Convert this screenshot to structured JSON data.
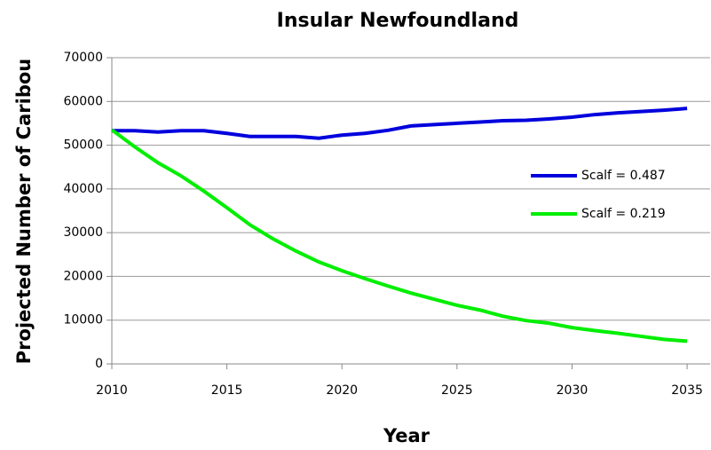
{
  "chart_data": {
    "type": "line",
    "title": "Insular Newfoundland",
    "x_label": "Year",
    "y_label": "Projected Number of Caribou",
    "x": [
      2010,
      2011,
      2012,
      2013,
      2014,
      2015,
      2016,
      2017,
      2018,
      2019,
      2020,
      2021,
      2022,
      2023,
      2024,
      2025,
      2026,
      2027,
      2028,
      2029,
      2030,
      2031,
      2032,
      2033,
      2034,
      2035
    ],
    "series": [
      {
        "name": "Scalf = 0.487",
        "color": "#0000dd",
        "values": [
          53300,
          53300,
          53000,
          53300,
          53300,
          52700,
          52000,
          52000,
          52000,
          51600,
          52300,
          52700,
          53400,
          54400,
          54700,
          55000,
          55300,
          55600,
          55700,
          56000,
          56400,
          57000,
          57400,
          57700,
          58000,
          58400
        ]
      },
      {
        "name": "Scalf = 0.219",
        "color": "#00ee00",
        "values": [
          53500,
          49600,
          46000,
          43000,
          39500,
          35700,
          31800,
          28600,
          25800,
          23300,
          21300,
          19500,
          17800,
          16200,
          14800,
          13400,
          12300,
          10900,
          9900,
          9300,
          8300,
          7600,
          7000,
          6300,
          5600,
          5200
        ]
      }
    ],
    "xlim": [
      2010,
      2036
    ],
    "xticks": [
      2010,
      2015,
      2020,
      2025,
      2030,
      2035
    ],
    "ylim": [
      0,
      70000
    ],
    "yticks": [
      0,
      10000,
      20000,
      30000,
      40000,
      50000,
      60000,
      70000
    ],
    "grid": true,
    "legend": "right"
  }
}
